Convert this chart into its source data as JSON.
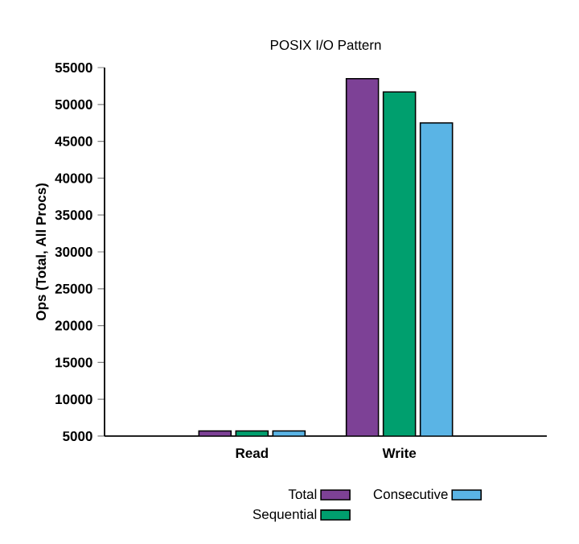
{
  "chart_data": {
    "type": "bar",
    "title": "POSIX I/O Pattern",
    "ylabel": "Ops (Total, All Procs)",
    "categories": [
      "Read",
      "Write"
    ],
    "series": [
      {
        "name": "Total",
        "color": "#7d4196",
        "values": [
          5700,
          53500
        ]
      },
      {
        "name": "Sequential",
        "color": "#009f6e",
        "values": [
          5700,
          51700
        ]
      },
      {
        "name": "Consecutive",
        "color": "#5ab4e5",
        "values": [
          5700,
          47500
        ]
      }
    ],
    "ylim": [
      5000,
      55000
    ],
    "yticks": [
      5000,
      10000,
      15000,
      20000,
      25000,
      30000,
      35000,
      40000,
      45000,
      50000,
      55000
    ],
    "legend": "bottom"
  }
}
